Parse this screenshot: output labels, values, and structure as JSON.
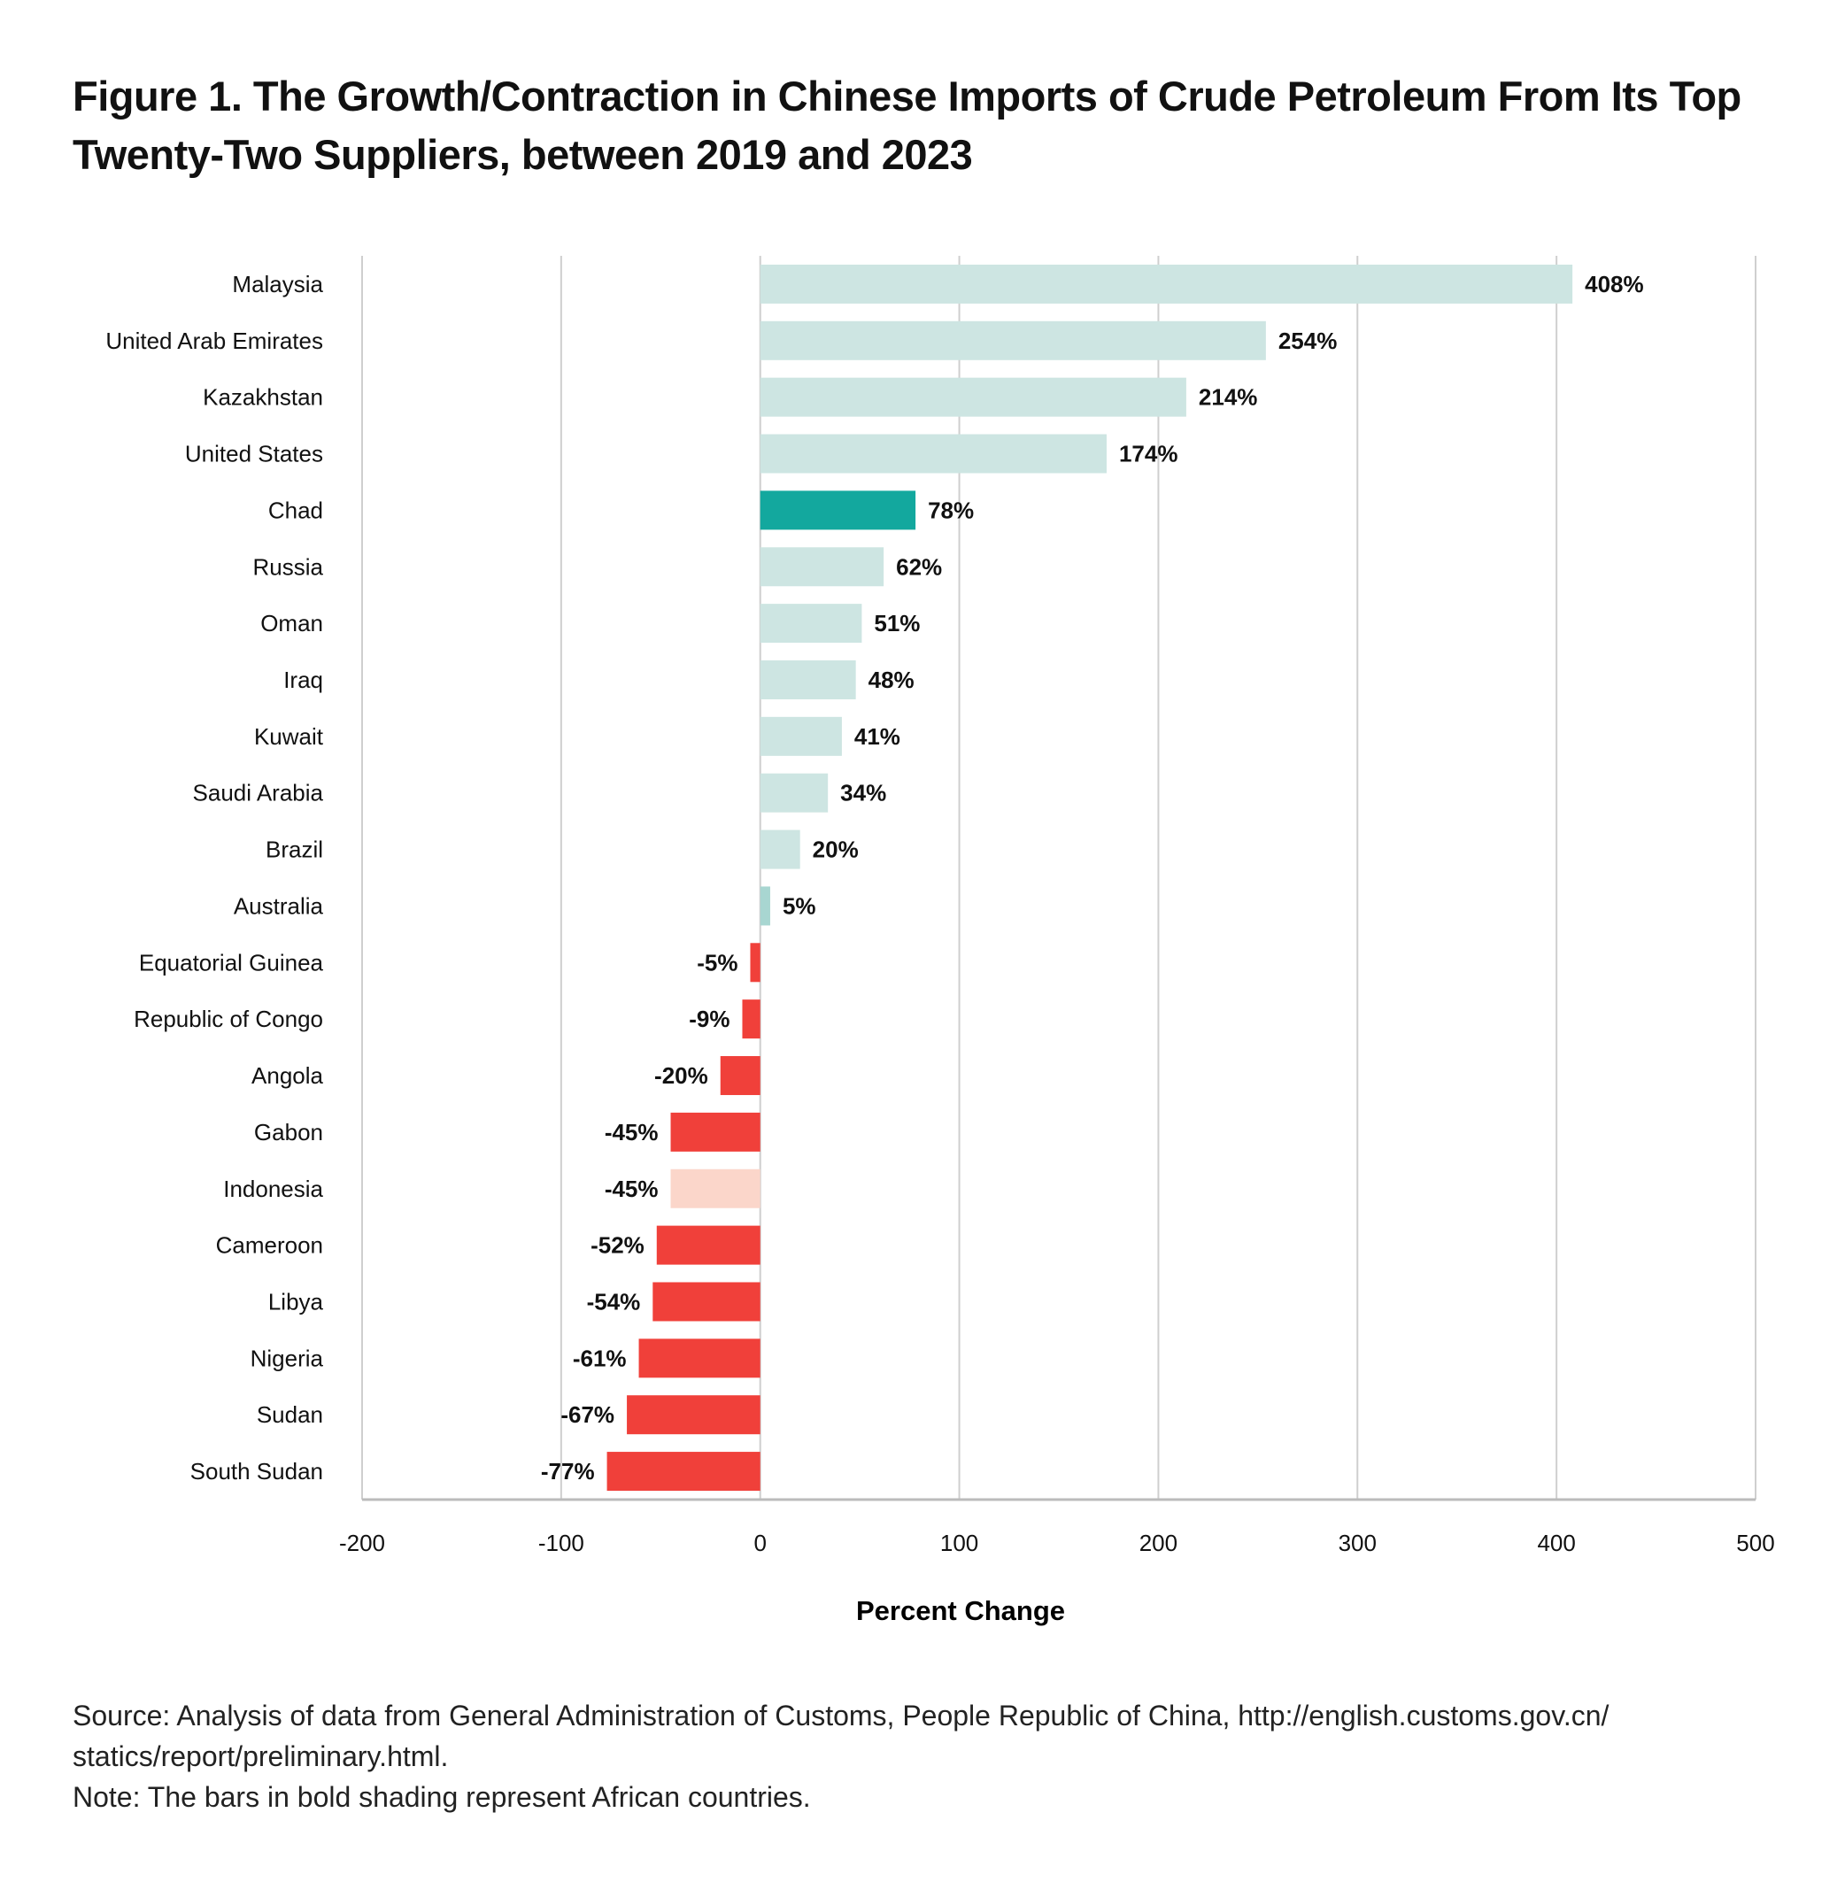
{
  "title": "Figure 1. The Growth/Contraction in Chinese Imports of Crude Petroleum From Its Top Twenty-Two Suppliers, between 2019 and 2023",
  "chart_data": {
    "type": "bar",
    "orientation": "horizontal",
    "title": "Figure 1. The Growth/Contraction in Chinese Imports of Crude Petroleum From Its Top Twenty-Two Suppliers, between 2019 and 2023",
    "xlabel": "Percent Change",
    "ylabel": "",
    "xlim": [
      -200,
      500
    ],
    "xticks": [
      -200,
      -100,
      0,
      100,
      200,
      300,
      400,
      500
    ],
    "grid": true,
    "categories": [
      "Malaysia",
      "United Arab Emirates",
      "Kazakhstan",
      "United States",
      "Chad",
      "Russia",
      "Oman",
      "Iraq",
      "Kuwait",
      "Saudi Arabia",
      "Brazil",
      "Australia",
      "Equatorial Guinea",
      "Republic of Congo",
      "Angola",
      "Gabon",
      "Indonesia",
      "Cameroon",
      "Libya",
      "Nigeria",
      "Sudan",
      "South Sudan"
    ],
    "values": [
      408,
      254,
      214,
      174,
      78,
      62,
      51,
      48,
      41,
      34,
      20,
      5,
      -5,
      -9,
      -20,
      -45,
      -45,
      -52,
      -54,
      -61,
      -67,
      -77
    ],
    "data_labels": [
      "408%",
      "254%",
      "214%",
      "174%",
      "78%",
      "62%",
      "51%",
      "48%",
      "41%",
      "34%",
      "20%",
      "5%",
      "-5%",
      "-9%",
      "-20%",
      "-45%",
      "-45%",
      "-52%",
      "-54%",
      "-61%",
      "-67%",
      "-77%"
    ],
    "colors": [
      "#cde5e2",
      "#cde5e2",
      "#cde5e2",
      "#cde5e2",
      "#13a89e",
      "#cde5e2",
      "#cde5e2",
      "#cde5e2",
      "#cde5e2",
      "#cde5e2",
      "#cde5e2",
      "#a8d6d1",
      "#f0403a",
      "#f0403a",
      "#f0403a",
      "#f0403a",
      "#fbd6ca",
      "#f0403a",
      "#f0403a",
      "#f0403a",
      "#f0403a",
      "#f0403a"
    ]
  },
  "source": {
    "line1": "Source: Analysis of data from General Administration of Customs, People Republic of China, http://english.customs.gov.cn/",
    "line2": "statics/report/preliminary.html.",
    "note": "Note: The bars in bold shading represent African countries."
  }
}
